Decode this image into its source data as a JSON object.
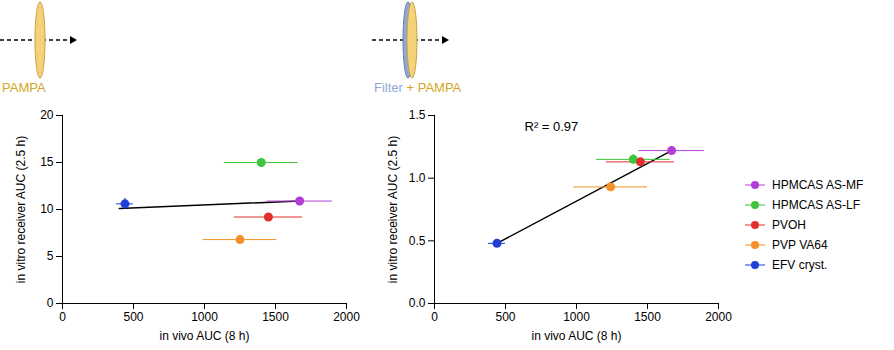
{
  "chart_data": [
    {
      "type": "scatter",
      "panel_label": [
        {
          "text": "PAMPA",
          "color": "#d4a526"
        }
      ],
      "x_label": "in vivo AUC (8 h)",
      "y_label": "in vitro receiver AUC (2.5 h)",
      "xlim": [
        0,
        2000
      ],
      "xticks": [
        0,
        500,
        1000,
        1500,
        2000
      ],
      "ylim": [
        0,
        20
      ],
      "yticks": [
        0,
        5,
        10,
        15,
        20
      ],
      "series": [
        {
          "name": "HPMCAS AS-MF",
          "color": "#b03fd6",
          "x": [
            1670
          ],
          "values": [
            10.9
          ],
          "x_error": [
            230
          ],
          "y_error": [
            0.3
          ]
        },
        {
          "name": "HPMCAS AS-LF",
          "color": "#3ec43e",
          "x": [
            1400
          ],
          "values": [
            15.0
          ],
          "x_error": [
            260
          ],
          "y_error": [
            0.2
          ]
        },
        {
          "name": "PVOH",
          "color": "#e0302a",
          "x": [
            1450
          ],
          "values": [
            9.2
          ],
          "x_error": [
            240
          ],
          "y_error": [
            0.2
          ]
        },
        {
          "name": "PVP VA64",
          "color": "#f5902a",
          "x": [
            1250
          ],
          "values": [
            6.8
          ],
          "x_error": [
            260
          ],
          "y_error": [
            0.2
          ]
        },
        {
          "name": "EFV cryst.",
          "color": "#1f3fd6",
          "x": [
            440
          ],
          "values": [
            10.6
          ],
          "x_error": [
            60
          ],
          "y_error": [
            0.6
          ]
        }
      ],
      "fit_line": {
        "x": [
          400,
          1670
        ],
        "values": [
          10.1,
          10.9
        ]
      }
    },
    {
      "type": "scatter",
      "panel_label": [
        {
          "text": "Filter",
          "color": "#8fa9d6"
        },
        {
          "text": " + PAMPA",
          "color": "#d4a526"
        }
      ],
      "x_label": "in vivo AUC (8 h)",
      "y_label": "in vitro receiver AUC (2.5 h)",
      "annotation": "R² = 0.97",
      "xlim": [
        0,
        2000
      ],
      "xticks": [
        0,
        500,
        1000,
        1500,
        2000
      ],
      "ylim": [
        0,
        1.5
      ],
      "yticks": [
        {
          "value": 0,
          "label": "0.0"
        },
        {
          "value": 0.5,
          "label": "0.5"
        },
        {
          "value": 1,
          "label": "1.0"
        },
        {
          "value": 1.5,
          "label": "1.5"
        }
      ],
      "legend": "right",
      "series": [
        {
          "name": "HPMCAS AS-MF",
          "color": "#b03fd6",
          "x": [
            1670
          ],
          "values": [
            1.22
          ],
          "x_error": [
            230
          ],
          "y_error": [
            0.02
          ]
        },
        {
          "name": "HPMCAS AS-LF",
          "color": "#3ec43e",
          "x": [
            1400
          ],
          "values": [
            1.15
          ],
          "x_error": [
            260
          ],
          "y_error": [
            0.04
          ]
        },
        {
          "name": "PVOH",
          "color": "#e0302a",
          "x": [
            1450
          ],
          "values": [
            1.13
          ],
          "x_error": [
            240
          ],
          "y_error": [
            0.02
          ]
        },
        {
          "name": "PVP VA64",
          "color": "#f5902a",
          "x": [
            1240
          ],
          "values": [
            0.93
          ],
          "x_error": [
            260
          ],
          "y_error": [
            0.02
          ]
        },
        {
          "name": "EFV cryst.",
          "color": "#1f3fd6",
          "x": [
            440
          ],
          "values": [
            0.48
          ],
          "x_error": [
            60
          ],
          "y_error": [
            0.02
          ]
        }
      ],
      "fit_line": {
        "x": [
          440,
          1670
        ],
        "values": [
          0.48,
          1.22
        ]
      }
    }
  ]
}
